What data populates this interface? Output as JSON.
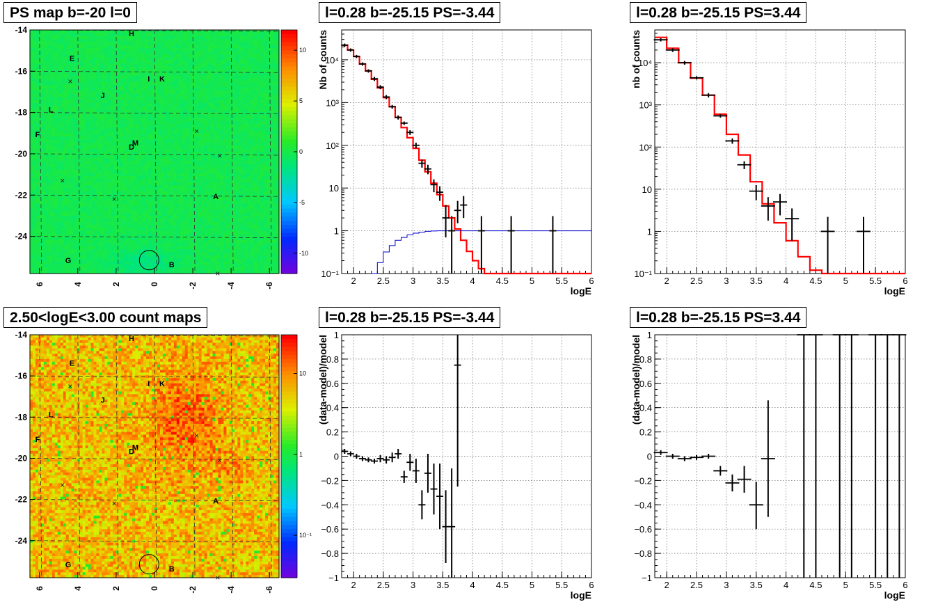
{
  "titles": {
    "map_top": "PS map b=-20 l=0",
    "map_bottom": "2.50<logE<3.00 count maps",
    "spec_neg": "l=0.28 b=-25.15 PS=-3.44",
    "spec_pos": "l=0.28 b=-25.15 PS=3.44",
    "res_neg": "l=0.28 b=-25.15 PS=-3.44",
    "res_pos": "l=0.28 b=-25.15 PS=3.44"
  },
  "colors": {
    "model": "#ff0000",
    "ps_model": "#0000cc",
    "data": "#000000"
  },
  "chart_data": [
    {
      "id": "map_top",
      "type": "heatmap",
      "title": "PS map b=-20 l=0",
      "xlim": [
        6.5,
        -6.5
      ],
      "ylim": [
        -25.8,
        -14
      ],
      "xticks": [
        6,
        4,
        2,
        0,
        -2,
        -4,
        -6
      ],
      "yticks": [
        -14,
        -16,
        -18,
        -20,
        -22,
        -24
      ],
      "colorbar": {
        "ticks": [
          "10",
          "5",
          "0",
          "-5",
          "-10"
        ],
        "values": [
          10,
          5,
          0,
          -5,
          -10
        ],
        "range": [
          -12,
          12
        ],
        "scale": "linear"
      },
      "base_value": 0,
      "labels": [
        {
          "text": "H",
          "l": 1.2,
          "b": -14.3
        },
        {
          "text": "E",
          "l": 4.3,
          "b": -15.5
        },
        {
          "text": "I",
          "l": 0.3,
          "b": -16.5
        },
        {
          "text": "K",
          "l": -0.4,
          "b": -16.5
        },
        {
          "text": "J",
          "l": 2.7,
          "b": -17.3
        },
        {
          "text": "L",
          "l": 5.4,
          "b": -18.0
        },
        {
          "text": "F",
          "l": 6.1,
          "b": -19.2
        },
        {
          "text": "M",
          "l": 1.0,
          "b": -19.6
        },
        {
          "text": "D",
          "l": 1.2,
          "b": -19.8
        },
        {
          "text": "A",
          "l": -3.2,
          "b": -22.2
        },
        {
          "text": "G",
          "l": 4.5,
          "b": -25.3
        },
        {
          "text": "B",
          "l": -0.9,
          "b": -25.5
        }
      ],
      "crosses": [
        {
          "l": 4.4,
          "b": -16.5
        },
        {
          "l": -2.2,
          "b": -18.9
        },
        {
          "l": -3.4,
          "b": -20.1
        },
        {
          "l": 4.8,
          "b": -21.3
        },
        {
          "l": 2.1,
          "b": -22.2
        },
        {
          "l": -3.3,
          "b": -25.8
        }
      ],
      "circle": {
        "l": 0.28,
        "b": -25.15
      }
    },
    {
      "id": "map_bottom",
      "type": "heatmap",
      "title": "2.50<logE<3.00 count maps",
      "xlim": [
        6.5,
        -6.5
      ],
      "ylim": [
        -25.8,
        -14
      ],
      "xticks": [
        6,
        4,
        2,
        0,
        -2,
        -4,
        -6
      ],
      "yticks": [
        -14,
        -16,
        -18,
        -20,
        -22,
        -24
      ],
      "colorbar": {
        "ticks": [
          "10",
          "1",
          "10⁻¹"
        ],
        "values": [
          10,
          1,
          0.1
        ],
        "range": [
          0.03,
          30
        ],
        "scale": "log"
      },
      "base_value": 8,
      "labels": [
        {
          "text": "H",
          "l": 1.2,
          "b": -14.3
        },
        {
          "text": "E",
          "l": 4.3,
          "b": -15.5
        },
        {
          "text": "I",
          "l": 0.3,
          "b": -16.5
        },
        {
          "text": "K",
          "l": -0.4,
          "b": -16.5
        },
        {
          "text": "J",
          "l": 2.7,
          "b": -17.3
        },
        {
          "text": "L",
          "l": 5.4,
          "b": -18.0
        },
        {
          "text": "F",
          "l": 6.1,
          "b": -19.2
        },
        {
          "text": "M",
          "l": 1.0,
          "b": -19.6
        },
        {
          "text": "D",
          "l": 1.2,
          "b": -19.8
        },
        {
          "text": "A",
          "l": -3.2,
          "b": -22.2
        },
        {
          "text": "G",
          "l": 4.5,
          "b": -25.3
        },
        {
          "text": "B",
          "l": -0.9,
          "b": -25.5
        }
      ],
      "crosses": [
        {
          "l": 4.4,
          "b": -16.5
        },
        {
          "l": -2.2,
          "b": -18.9
        },
        {
          "l": -3.4,
          "b": -20.1
        },
        {
          "l": 4.8,
          "b": -21.3
        },
        {
          "l": 2.1,
          "b": -22.2
        },
        {
          "l": -3.3,
          "b": -25.8
        }
      ],
      "circle": {
        "l": 0.28,
        "b": -25.15
      }
    },
    {
      "id": "spec_neg",
      "type": "line",
      "title": "l=0.28 b=-25.15 PS=-3.44",
      "xlabel": "logE",
      "ylabel": "Nb of counts",
      "xlim": [
        1.8,
        6
      ],
      "ylim": [
        0.1,
        50000
      ],
      "yscale": "log",
      "xticks": [
        "2",
        "2.5",
        "3",
        "3.5",
        "4",
        "4.5",
        "5",
        "5.5",
        "6"
      ],
      "yticks": [
        "10⁻¹",
        "1",
        "10",
        "10²",
        "10³",
        "10⁴"
      ],
      "series": [
        {
          "style": "step",
          "color": "#ff0000",
          "x": [
            1.8,
            1.9,
            2.0,
            2.1,
            2.2,
            2.3,
            2.4,
            2.5,
            2.6,
            2.7,
            2.8,
            2.9,
            3.0,
            3.1,
            3.2,
            3.3,
            3.4,
            3.5,
            3.6,
            3.7,
            3.8,
            3.9,
            4.0,
            4.1,
            4.2,
            4.3,
            4.4,
            4.5,
            6.0
          ],
          "y": [
            22000,
            17000,
            12000,
            8000,
            5500,
            3500,
            2200,
            1300,
            800,
            450,
            260,
            150,
            85,
            45,
            24,
            13,
            7,
            3.8,
            2,
            1.1,
            0.6,
            0.33,
            0.2,
            0.13,
            0.1,
            0.1,
            0.1,
            0.1,
            0.1
          ]
        },
        {
          "style": "step",
          "color": "#0000cc",
          "x": [
            2.3,
            2.4,
            2.5,
            2.6,
            2.7,
            2.8,
            2.9,
            3.0,
            3.1,
            3.2,
            3.3,
            3.4,
            6.0
          ],
          "y": [
            0.1,
            0.18,
            0.32,
            0.45,
            0.6,
            0.7,
            0.8,
            0.88,
            0.93,
            0.97,
            0.99,
            1.0,
            1.0
          ]
        },
        {
          "style": "errorbar",
          "color": "#000000",
          "x": [
            1.85,
            1.95,
            2.05,
            2.15,
            2.25,
            2.35,
            2.45,
            2.55,
            2.65,
            2.75,
            2.85,
            2.95,
            3.05,
            3.15,
            3.25,
            3.35,
            3.45,
            3.55,
            3.65,
            3.75,
            3.85,
            4.15,
            4.65,
            5.35
          ],
          "y": [
            22000,
            17000,
            12000,
            8000,
            5500,
            3600,
            2300,
            1350,
            800,
            450,
            330,
            200,
            100,
            38,
            28,
            12,
            8,
            2,
            1,
            3,
            4,
            1,
            1,
            1
          ],
          "ylo": [
            20000,
            15500,
            11000,
            7300,
            5000,
            3200,
            2050,
            1200,
            720,
            400,
            300,
            175,
            85,
            30,
            21,
            8,
            5,
            0.7,
            0.1,
            1.5,
            2,
            0.1,
            0.1,
            0.1
          ],
          "yhi": [
            24000,
            18500,
            13000,
            8700,
            6000,
            4000,
            2550,
            1500,
            880,
            500,
            360,
            225,
            115,
            46,
            35,
            16,
            11,
            4,
            2.2,
            5,
            6.5,
            2.2,
            2.2,
            2.2
          ]
        }
      ]
    },
    {
      "id": "spec_pos",
      "type": "line",
      "title": "l=0.28 b=-25.15 PS=3.44",
      "xlabel": "logE",
      "ylabel": "nb of counts",
      "xlim": [
        1.8,
        6
      ],
      "ylim": [
        0.1,
        60000
      ],
      "yscale": "log",
      "xticks": [
        "2",
        "2.5",
        "3",
        "3.5",
        "4",
        "4.5",
        "5",
        "5.5",
        "6"
      ],
      "yticks": [
        "10⁻¹",
        "1",
        "10",
        "10²",
        "10³",
        "10⁴"
      ],
      "series": [
        {
          "style": "step",
          "color": "#ff0000",
          "x": [
            1.8,
            2.0,
            2.2,
            2.4,
            2.6,
            2.8,
            3.0,
            3.2,
            3.4,
            3.6,
            3.8,
            4.0,
            4.2,
            4.4,
            4.6,
            4.8,
            6.0
          ],
          "y": [
            40000,
            22000,
            10000,
            4300,
            1700,
            600,
            200,
            65,
            15,
            4.5,
            1.6,
            0.6,
            0.25,
            0.12,
            0.1,
            0.1,
            0.1
          ]
        },
        {
          "style": "errorbar",
          "color": "#000000",
          "x": [
            1.9,
            2.1,
            2.3,
            2.5,
            2.7,
            2.9,
            3.1,
            3.3,
            3.5,
            3.7,
            3.9,
            4.1,
            4.7,
            5.3
          ],
          "y": [
            35000,
            20000,
            10000,
            4400,
            1700,
            550,
            140,
            38,
            9,
            4,
            5,
            2,
            1,
            1
          ],
          "ylo": [
            32000,
            18000,
            9000,
            4000,
            1500,
            500,
            120,
            30,
            5.5,
            1.8,
            2.4,
            0.6,
            0.1,
            0.1
          ],
          "yhi": [
            38000,
            22000,
            11000,
            4800,
            1900,
            600,
            160,
            46,
            12.5,
            6.5,
            7.7,
            3.5,
            2.2,
            2.2
          ]
        }
      ]
    },
    {
      "id": "res_neg",
      "type": "scatter",
      "title": "l=0.28 b=-25.15 PS=-3.44",
      "xlabel": "logE",
      "ylabel": "(data-model)/model",
      "xlim": [
        1.8,
        6
      ],
      "ylim": [
        -1,
        1
      ],
      "xticks": [
        "2",
        "2.5",
        "3",
        "3.5",
        "4",
        "4.5",
        "5",
        "5.5",
        "6"
      ],
      "yticks": [
        "1",
        "0.8",
        "0.6",
        "0.4",
        "0.2",
        "0",
        "−0.2",
        "−0.4",
        "−0.6",
        "−0.8",
        "−1"
      ],
      "series": [
        {
          "style": "errorbar",
          "color": "#000000",
          "x": [
            1.85,
            1.95,
            2.05,
            2.15,
            2.25,
            2.35,
            2.45,
            2.55,
            2.65,
            2.75,
            2.85,
            2.95,
            3.05,
            3.15,
            3.25,
            3.35,
            3.45,
            3.55,
            3.65,
            3.75
          ],
          "y": [
            0.04,
            0.02,
            0.0,
            -0.02,
            -0.03,
            -0.04,
            -0.02,
            -0.03,
            -0.01,
            0.02,
            -0.17,
            -0.05,
            -0.12,
            -0.4,
            -0.14,
            -0.27,
            -0.33,
            -0.58,
            -0.58,
            0.75
          ],
          "ylo": [
            0.02,
            0.0,
            -0.02,
            -0.04,
            -0.05,
            -0.06,
            -0.05,
            -0.06,
            -0.05,
            -0.02,
            -0.22,
            -0.12,
            -0.22,
            -0.52,
            -0.3,
            -0.48,
            -0.6,
            -0.88,
            -1.0,
            -0.25
          ],
          "yhi": [
            0.06,
            0.04,
            0.02,
            0.0,
            -0.01,
            -0.02,
            0.01,
            0.0,
            0.03,
            0.06,
            -0.12,
            0.02,
            -0.02,
            -0.28,
            0.02,
            -0.06,
            -0.06,
            -0.28,
            -0.1,
            1.0
          ]
        }
      ]
    },
    {
      "id": "res_pos",
      "type": "scatter",
      "title": "l=0.28 b=-25.15 PS=3.44",
      "xlabel": "logE",
      "ylabel": "(data-model)/model",
      "xlim": [
        1.8,
        6
      ],
      "ylim": [
        -1,
        1
      ],
      "xticks": [
        "2",
        "2.5",
        "3",
        "3.5",
        "4",
        "4.5",
        "5",
        "5.5",
        "6"
      ],
      "yticks": [
        "1",
        "0.8",
        "0.6",
        "0.4",
        "0.2",
        "0",
        "−0.2",
        "−0.4",
        "−0.6",
        "−0.8",
        "−1"
      ],
      "series": [
        {
          "style": "errorbar",
          "color": "#000000",
          "x": [
            1.9,
            2.1,
            2.3,
            2.5,
            2.7,
            2.9,
            3.1,
            3.3,
            3.5,
            3.7,
            4.3,
            4.5,
            4.9,
            5.1,
            5.5,
            5.7,
            5.9
          ],
          "y": [
            0.03,
            0.0,
            -0.02,
            -0.01,
            0.0,
            -0.12,
            -0.22,
            -0.19,
            -0.4,
            -0.02,
            1,
            1,
            1,
            1,
            1,
            1,
            1
          ],
          "ylo": [
            0.01,
            -0.02,
            -0.04,
            -0.03,
            -0.02,
            -0.16,
            -0.29,
            -0.3,
            -0.6,
            -0.5,
            -1,
            -1,
            -1,
            -1,
            -1,
            -1,
            -1
          ],
          "yhi": [
            0.05,
            0.02,
            0.0,
            0.01,
            0.02,
            -0.08,
            -0.15,
            -0.08,
            -0.21,
            0.46,
            1,
            1,
            1,
            1,
            1,
            1,
            1
          ]
        }
      ]
    }
  ]
}
